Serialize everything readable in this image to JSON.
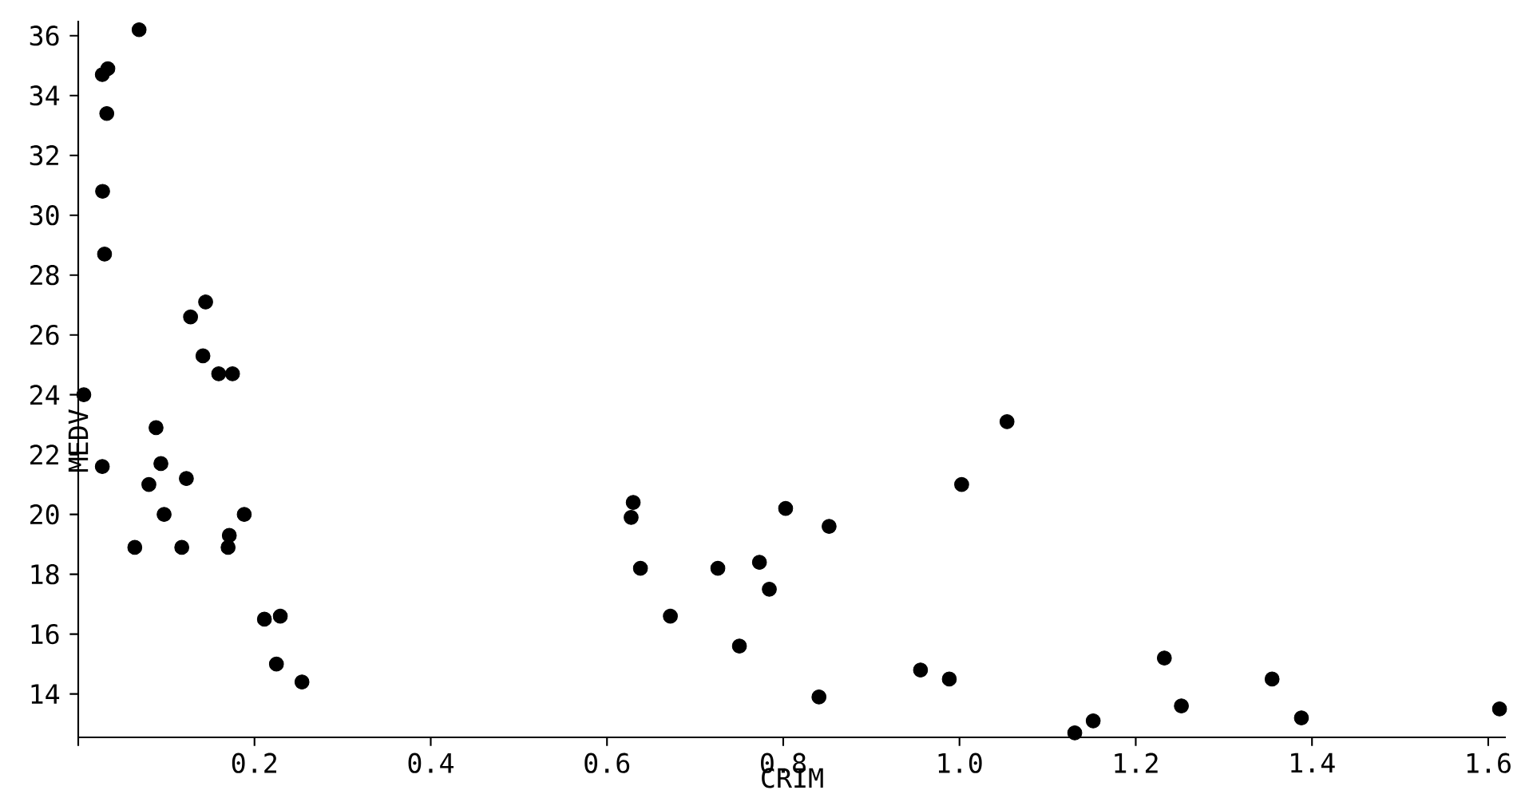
{
  "chart_data": {
    "type": "scatter",
    "xlabel": "CRIM",
    "ylabel": "MEDV",
    "marker": "circle",
    "xlim": [
      0,
      1.62
    ],
    "ylim": [
      12.55,
      36.5
    ],
    "xticks": [
      {
        "value": 0,
        "label": null
      },
      0.2,
      0.4,
      0.6,
      0.8,
      {
        "value": 1,
        "label": "1.0"
      },
      1.2,
      1.4,
      1.6
    ],
    "yticks": [
      14,
      16,
      18,
      20,
      22,
      24,
      26,
      28,
      30,
      32,
      34,
      36
    ],
    "series": [
      {
        "color": "#000000",
        "x": [
          0.00632,
          0.02731,
          0.02729,
          0.03237,
          0.06905,
          0.02985,
          0.08829,
          0.14455,
          0.21124,
          0.17004,
          0.22489,
          0.11747,
          0.09378,
          0.62976,
          0.63796,
          0.62739,
          1.05393,
          0.7842,
          0.80271,
          0.7258,
          1.25179,
          0.85204,
          1.23247,
          0.98843,
          0.75026,
          0.84054,
          0.67191,
          0.95577,
          0.77299,
          1.00245,
          1.13081,
          1.35472,
          1.38799,
          1.15172,
          1.61282,
          0.06417,
          0.09744,
          0.08014,
          0.17505,
          0.02763,
          0.03359,
          0.12744,
          0.1415,
          0.15936,
          0.12269,
          0.17142,
          0.18836,
          0.22927,
          0.25387
        ],
        "values": [
          24.0,
          21.6,
          34.7,
          33.4,
          36.2,
          28.7,
          22.9,
          27.1,
          16.5,
          18.9,
          15.0,
          18.9,
          21.7,
          20.4,
          18.2,
          19.9,
          23.1,
          17.5,
          20.2,
          18.2,
          13.6,
          19.6,
          15.2,
          14.5,
          15.6,
          13.9,
          16.6,
          14.8,
          18.4,
          21.0,
          12.7,
          14.5,
          13.2,
          13.1,
          13.5,
          18.9,
          20.0,
          21.0,
          24.7,
          30.8,
          34.9,
          26.6,
          25.3,
          24.7,
          21.2,
          19.3,
          20.0,
          16.6,
          14.4
        ]
      }
    ]
  }
}
